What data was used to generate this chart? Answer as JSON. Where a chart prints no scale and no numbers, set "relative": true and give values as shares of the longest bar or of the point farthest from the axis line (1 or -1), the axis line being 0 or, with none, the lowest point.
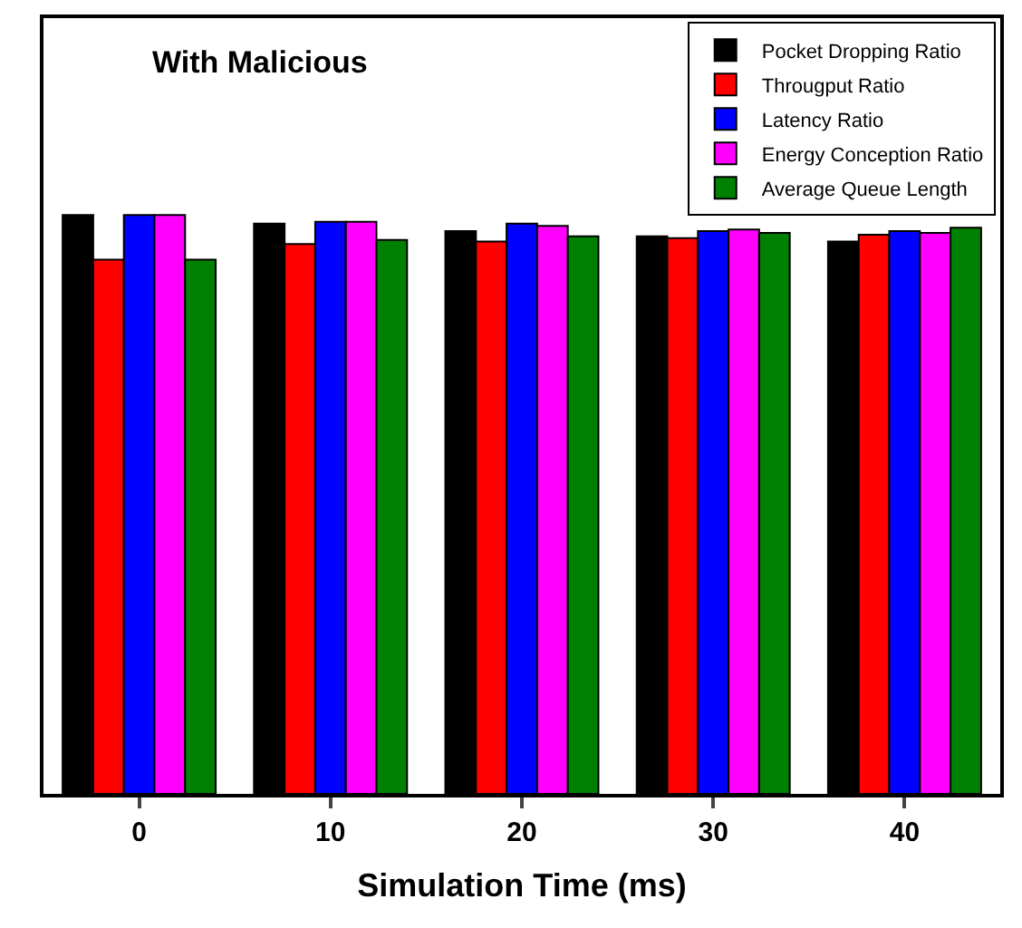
{
  "chart_data": {
    "type": "bar",
    "title": "With Malicious",
    "xlabel": "Simulation Time (ms)",
    "categories": [
      "0",
      "10",
      "20",
      "30",
      "40"
    ],
    "relative": true,
    "legend": "top right",
    "series": [
      {
        "name": "Pocket Dropping Ratio",
        "color": "#000000",
        "values": [
          1,
          0.985,
          0.972,
          0.963,
          0.954
        ]
      },
      {
        "name": "Througput Ratio",
        "color": "#ff0000",
        "values": [
          0.923,
          0.95,
          0.954,
          0.96,
          0.966
        ]
      },
      {
        "name": "Latency Ratio",
        "color": "#0000ff",
        "values": [
          1,
          0.988,
          0.985,
          0.972,
          0.972
        ]
      },
      {
        "name": "Energy Conception Ratio",
        "color": "#ff00ff",
        "values": [
          1,
          0.988,
          0.981,
          0.975,
          0.969
        ]
      },
      {
        "name": "Average Queue Length",
        "color": "#008000",
        "values": [
          0.923,
          0.957,
          0.963,
          0.969,
          0.978
        ]
      }
    ]
  }
}
